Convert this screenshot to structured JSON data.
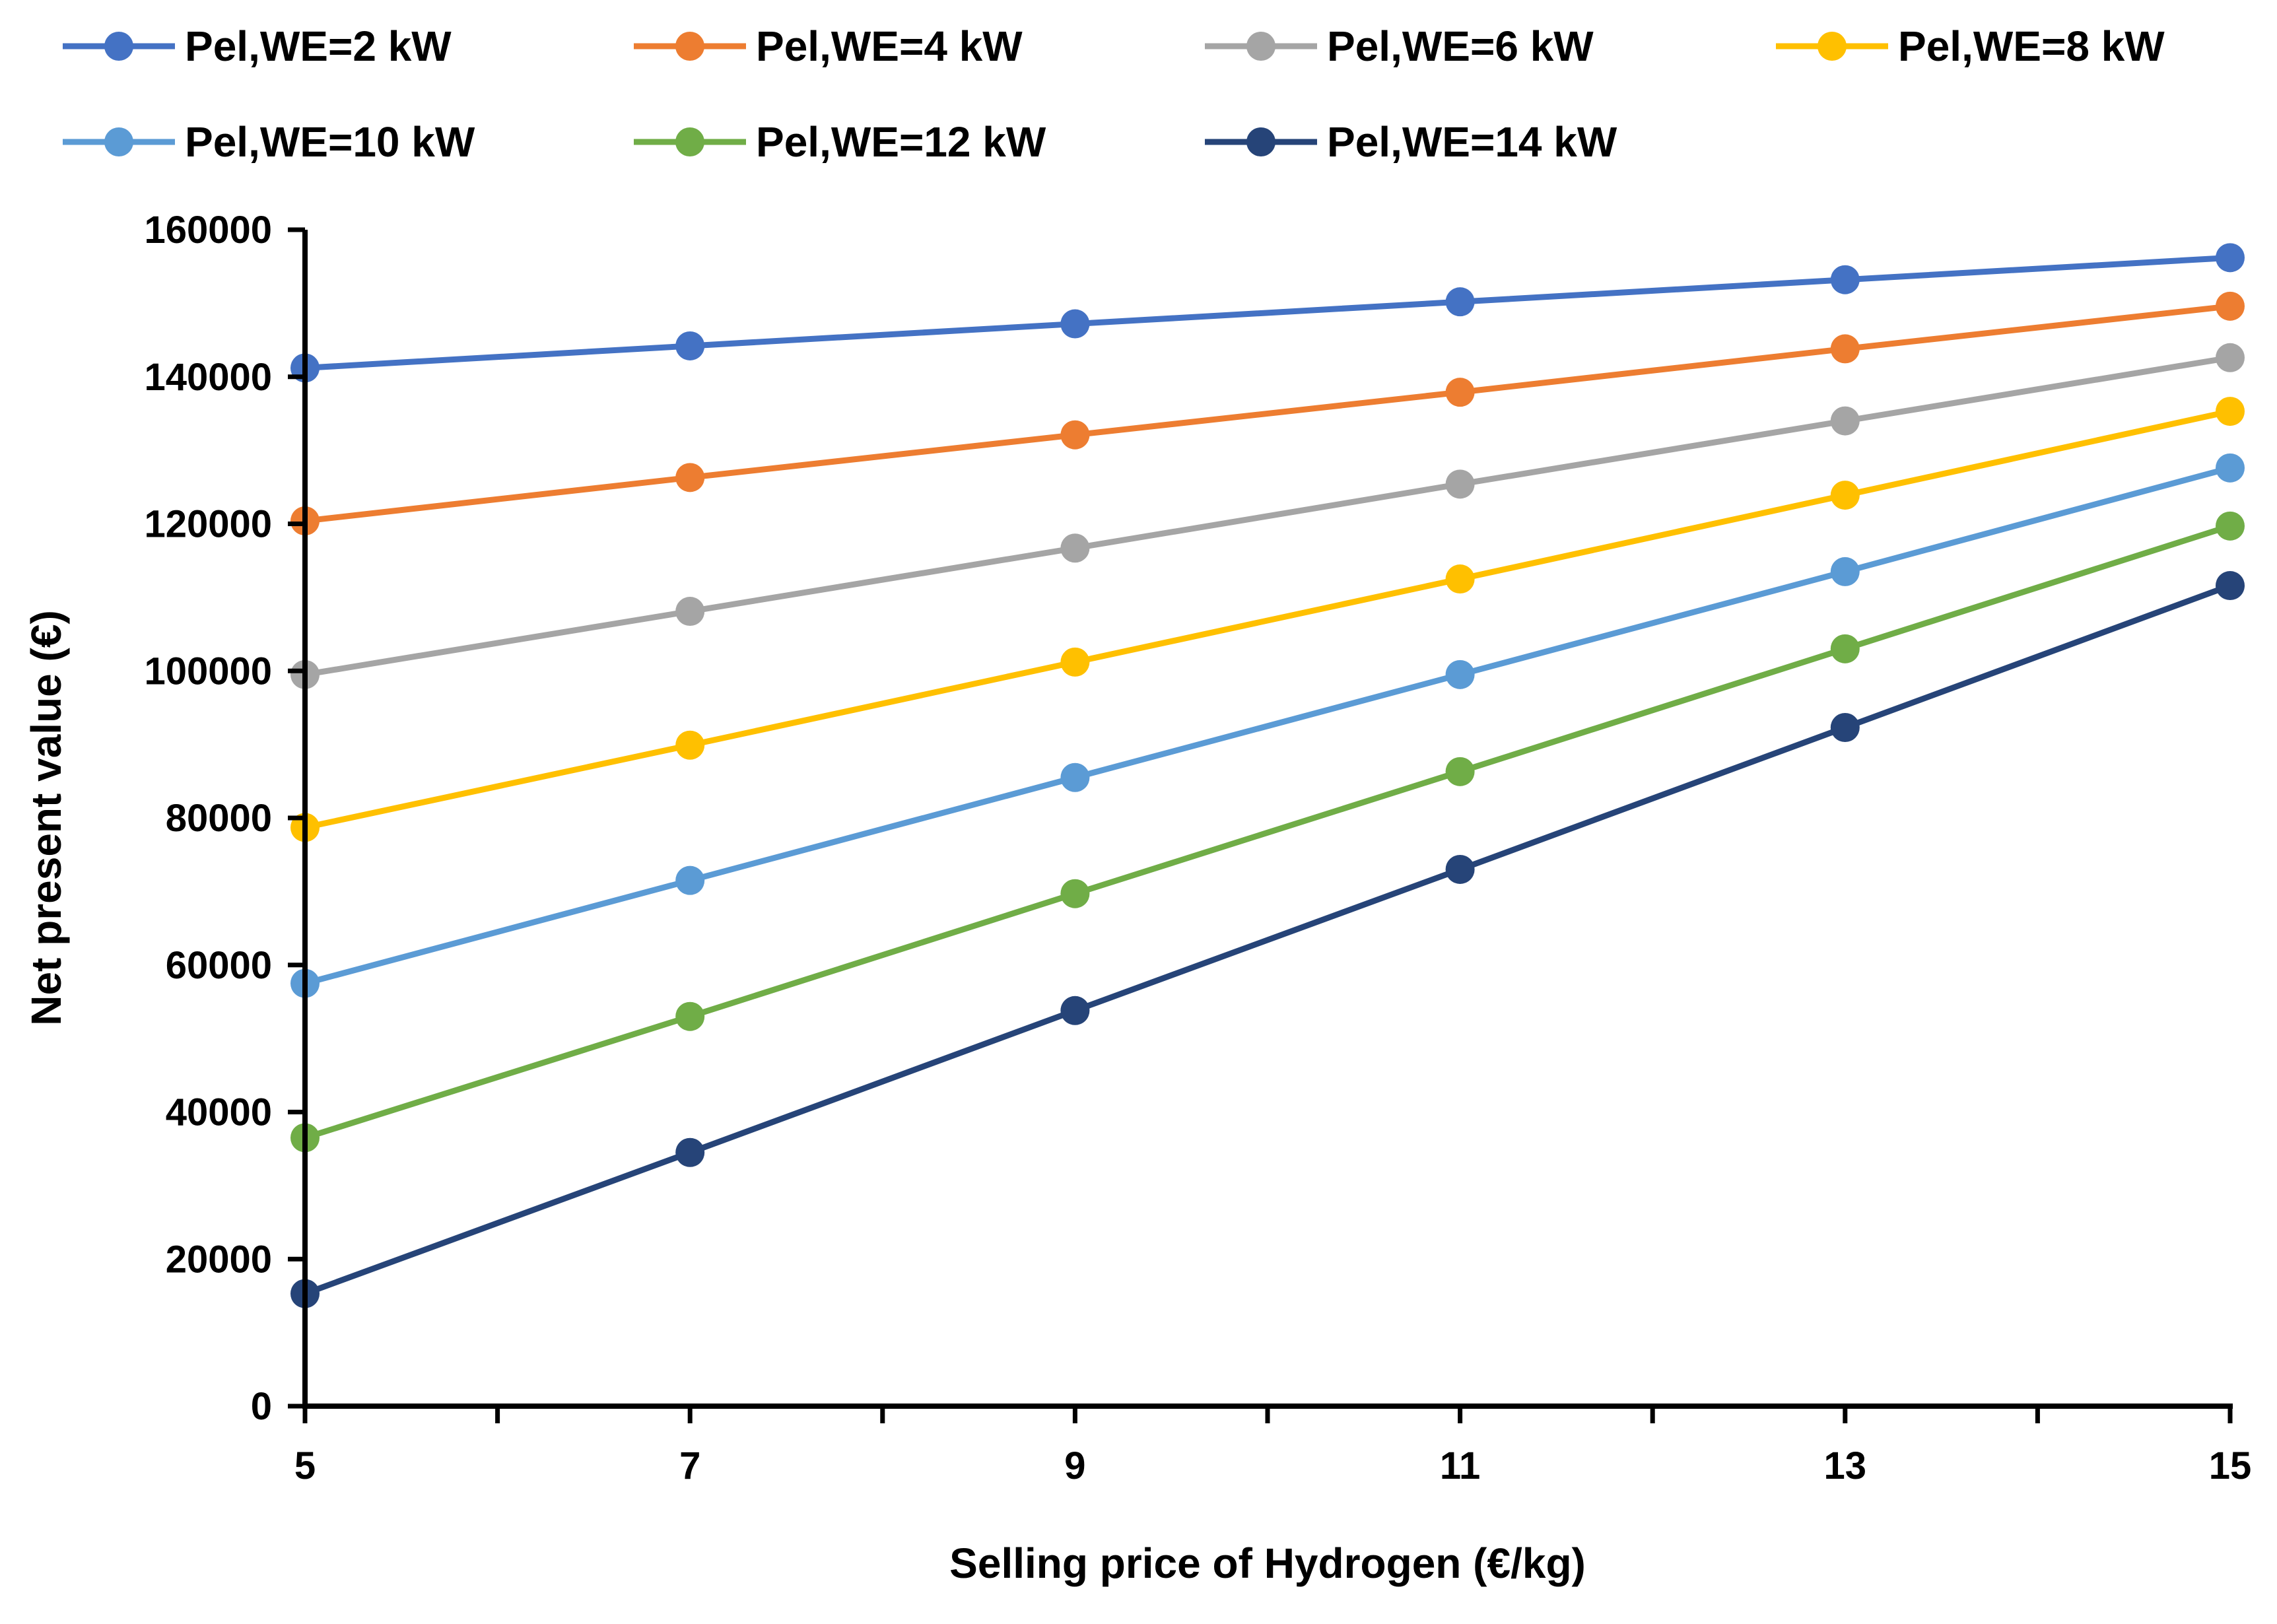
{
  "chart_data": {
    "type": "line",
    "title": "",
    "xlabel": "Selling price of Hydrogen (€/kg)",
    "ylabel": "Net present value (€)",
    "x": [
      5,
      7,
      9,
      11,
      13,
      15
    ],
    "x_ticks": [
      "5",
      "7",
      "9",
      "11",
      "13",
      "15"
    ],
    "xlim": [
      5,
      15
    ],
    "ylim": [
      0,
      160000
    ],
    "y_ticks": [
      "0",
      "20000",
      "40000",
      "60000",
      "80000",
      "100000",
      "120000",
      "140000",
      "160000"
    ],
    "grid": false,
    "legend_position": "top",
    "series": [
      {
        "name": "Pel,WE=2 kW",
        "color": "#4472C4",
        "values": [
          141200,
          144200,
          147200,
          150200,
          153200,
          156200
        ]
      },
      {
        "name": "Pel,WE=4 kW",
        "color": "#ED7D31",
        "values": [
          120400,
          126300,
          132100,
          137900,
          143800,
          149600
        ]
      },
      {
        "name": "Pel,WE=6 kW",
        "color": "#A5A5A5",
        "values": [
          99500,
          108100,
          116700,
          125400,
          134000,
          142600
        ]
      },
      {
        "name": "Pel,WE=8 kW",
        "color": "#FFC000",
        "values": [
          78700,
          89900,
          101200,
          112500,
          123900,
          135300
        ]
      },
      {
        "name": "Pel,WE=10 kW",
        "color": "#5B9BD5",
        "values": [
          57500,
          71500,
          85500,
          99500,
          113500,
          127600
        ]
      },
      {
        "name": "Pel,WE=12 kW",
        "color": "#70AD47",
        "values": [
          36500,
          53000,
          69700,
          86300,
          103000,
          119700
        ]
      },
      {
        "name": "Pel,WE=14 kW",
        "color": "#264478",
        "values": [
          15300,
          34500,
          53800,
          73000,
          92300,
          111600
        ]
      }
    ]
  }
}
